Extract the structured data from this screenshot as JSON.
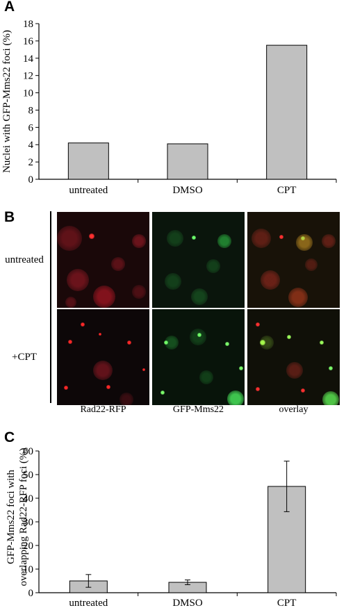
{
  "panels": {
    "a": {
      "letter": "A"
    },
    "b": {
      "letter": "B",
      "rows": [
        "untreated",
        "+CPT"
      ],
      "columns": [
        "Rad22-RFP",
        "GFP-Mms22",
        "overlay"
      ]
    },
    "c": {
      "letter": "C"
    }
  },
  "colors": {
    "bar_fill": "#c0c0c0",
    "bar_stroke": "#000000",
    "red_channel": "#ff2020",
    "green_channel": "#40ff40",
    "tile_bg": "#0b0b0b"
  },
  "chart_data": [
    {
      "id": "A",
      "type": "bar",
      "categories": [
        "untreated",
        "DMSO",
        "CPT"
      ],
      "values": [
        4.2,
        4.1,
        15.5
      ],
      "ylabel": "Nuclei with GFP-Mms22 foci (%)",
      "ylim": [
        0,
        18
      ],
      "yticks": [
        0,
        2,
        4,
        6,
        8,
        10,
        12,
        14,
        16,
        18
      ],
      "grid": false
    },
    {
      "id": "C",
      "type": "bar",
      "categories": [
        "untreated",
        "DMSO",
        "CPT"
      ],
      "values": [
        5,
        4.4,
        45
      ],
      "errors": [
        2.7,
        1.0,
        10.7
      ],
      "ylabel_lines": [
        "GFP-Mms22 foci with",
        "overlapping Rad22-RFP foci (%)"
      ],
      "ylim": [
        0,
        60
      ],
      "yticks": [
        0,
        10,
        20,
        30,
        40,
        50,
        60
      ],
      "grid": false
    }
  ]
}
